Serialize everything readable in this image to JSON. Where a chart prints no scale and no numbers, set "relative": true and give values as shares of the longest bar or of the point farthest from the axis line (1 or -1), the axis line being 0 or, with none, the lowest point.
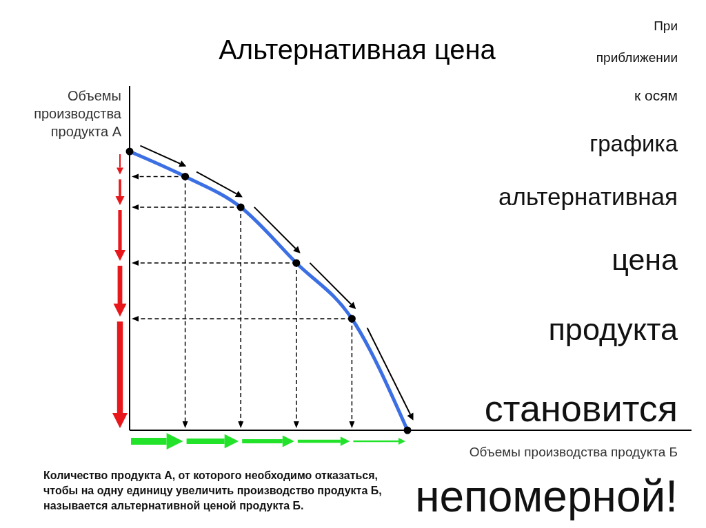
{
  "chart_data": {
    "type": "line",
    "relative": true,
    "title": "Альтернативная цена",
    "ylabel": "Объемы производства продукта А",
    "xlabel": "Объемы производства продукта Б",
    "marker": "circle",
    "categories": [
      null,
      null,
      null,
      null,
      null,
      null
    ],
    "series": [
      {
        "color": "#3b6fe3",
        "values": [
          1,
          0.91,
          0.8,
          0.6,
          0.4,
          0
        ]
      }
    ],
    "annotations": [
      "При",
      "приближении",
      "к осям",
      "графика",
      "альтернативная",
      "цена",
      "продукта",
      "становится",
      "непомерной!",
      "Количество продукта А, от которого необходимо отказаться, чтобы на одну единицу увеличить производство продукта Б, называется альтернативной ценой продукта Б."
    ]
  }
}
